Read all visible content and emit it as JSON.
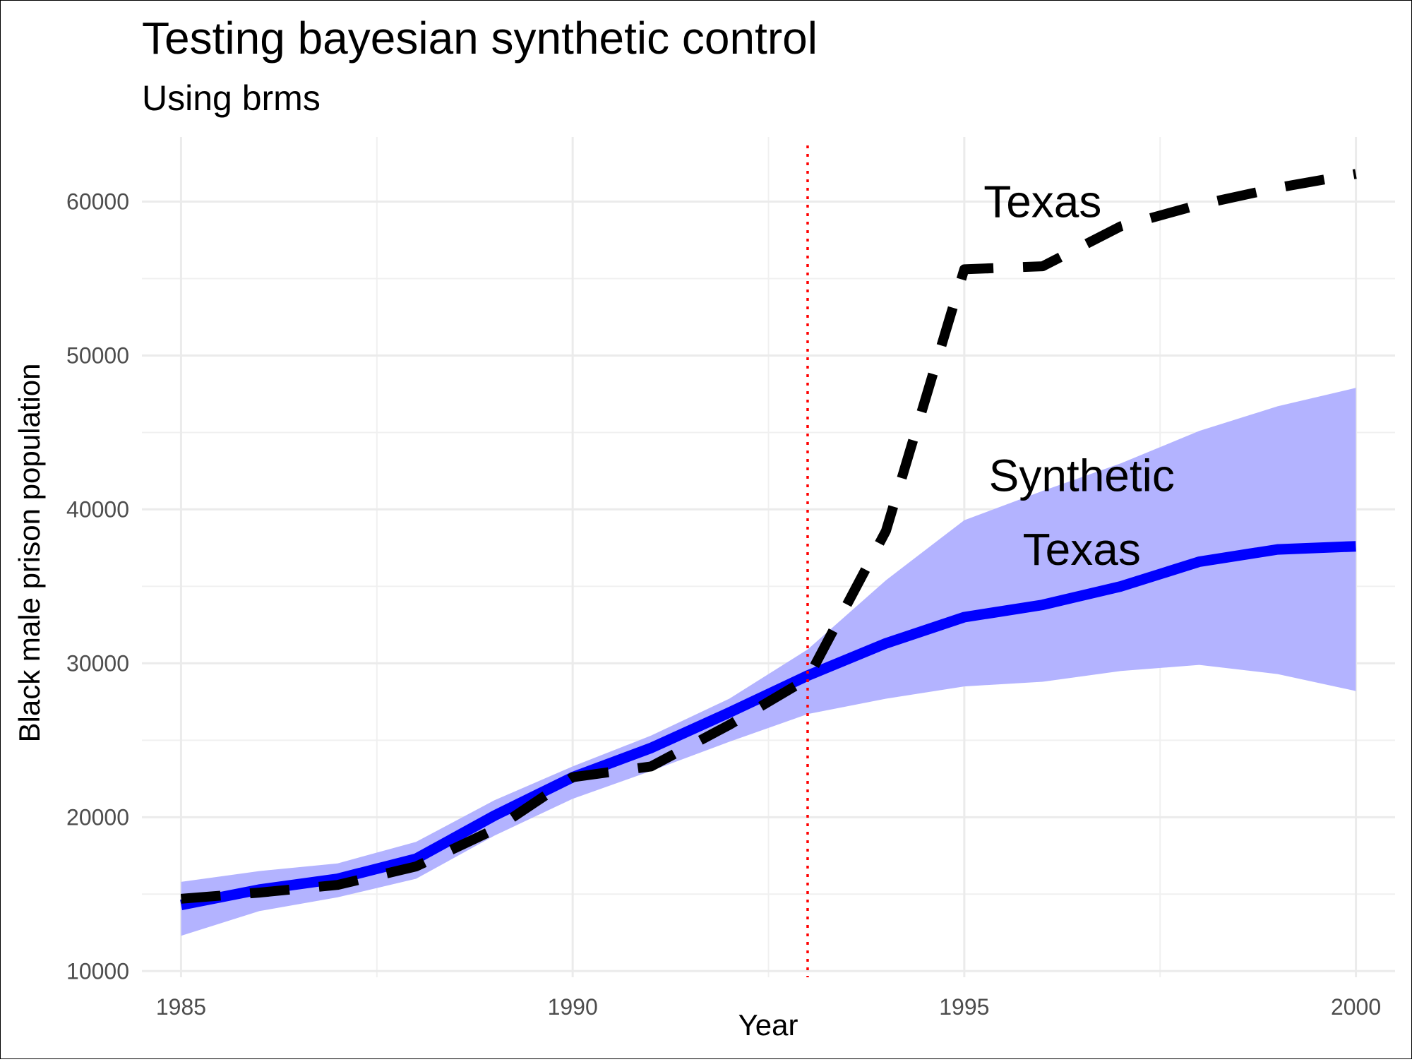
{
  "chart_data": {
    "type": "line",
    "title": "Testing bayesian synthetic control",
    "subtitle": "Using brms",
    "xlabel": "Year",
    "ylabel": "Black male prison population",
    "xlim": [
      1984.5,
      2000.5
    ],
    "ylim": [
      9600,
      64200
    ],
    "x_ticks": [
      1985,
      1990,
      1995,
      2000
    ],
    "y_ticks": [
      10000,
      20000,
      30000,
      40000,
      50000,
      60000
    ],
    "grid": true,
    "legend": "none",
    "treatment_line": {
      "x": 1993,
      "color": "#ff0000",
      "style": "dotted"
    },
    "x": [
      1985,
      1986,
      1987,
      1988,
      1989,
      1990,
      1991,
      1992,
      1993,
      1994,
      1995,
      1996,
      1997,
      1998,
      1999,
      2000
    ],
    "series": [
      {
        "values": [
          14700,
          15100,
          15600,
          16800,
          19200,
          22600,
          23300,
          26000,
          29000,
          38600,
          55600,
          55800,
          58400,
          59800,
          60900,
          61800
        ],
        "color": "#000000",
        "style": "dashed"
      },
      {
        "values": [
          14300,
          15300,
          16000,
          17300,
          20100,
          22600,
          24500,
          26800,
          29200,
          31300,
          33000,
          33800,
          35000,
          36600,
          37400,
          37600
        ],
        "color": "#0000ff",
        "style": "solid"
      }
    ],
    "interval": {
      "upper": [
        15800,
        16500,
        17000,
        18400,
        21100,
        23300,
        25300,
        27700,
        30900,
        35400,
        39300,
        41200,
        43000,
        45100,
        46700,
        47900
      ],
      "lower": [
        12300,
        13900,
        14800,
        16000,
        18800,
        21200,
        23000,
        24900,
        26700,
        27700,
        28500,
        28800,
        29500,
        29900,
        29300,
        28200
      ],
      "color": "#b3b3ff"
    },
    "annotations": [
      {
        "text": "Texas",
        "x": 1996,
        "y": 60000,
        "color": "#000000"
      },
      {
        "text": "Synthetic",
        "x": 1996.5,
        "y": 42200,
        "color": "#000000"
      },
      {
        "text": "Texas",
        "x": 1996.5,
        "y": 37400,
        "color": "#000000"
      }
    ]
  }
}
